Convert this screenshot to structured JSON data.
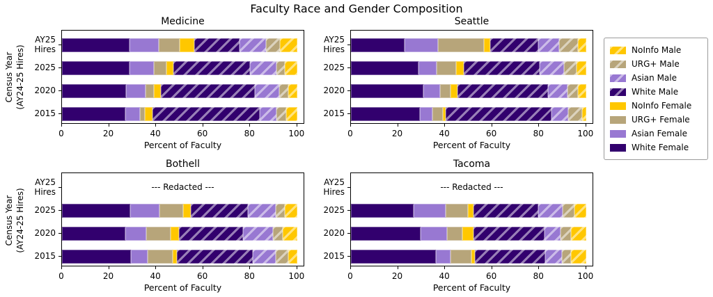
{
  "title": "Faculty Race and Gender Composition",
  "ylabel": "Census Year\n(AY24-25 Hires)",
  "redacted_label": "--- Redacted ---",
  "colors": {
    "white": "#32006E",
    "asian": "#9878D2",
    "urg_plus": "#B7A57A",
    "noinfo": "#FFC700"
  },
  "series_styles": {
    "White Female": {
      "color_key": "white",
      "hatched": false
    },
    "Asian Female": {
      "color_key": "asian",
      "hatched": false
    },
    "URG+ Female": {
      "color_key": "urg_plus",
      "hatched": false
    },
    "NoInfo Female": {
      "color_key": "noinfo",
      "hatched": false
    },
    "White Male": {
      "color_key": "white",
      "hatched": true
    },
    "Asian Male": {
      "color_key": "asian",
      "hatched": true
    },
    "URG+ Male": {
      "color_key": "urg_plus",
      "hatched": true
    },
    "NoInfo Male": {
      "color_key": "noinfo",
      "hatched": true
    }
  },
  "legend": {
    "items": [
      {
        "label": "NoInfo Male",
        "color_key": "noinfo",
        "hatched": true
      },
      {
        "label": "URG+ Male",
        "color_key": "urg_plus",
        "hatched": true
      },
      {
        "label": "Asian Male",
        "color_key": "asian",
        "hatched": true
      },
      {
        "label": "White Male",
        "color_key": "white",
        "hatched": true
      },
      {
        "label": "NoInfo Female",
        "color_key": "noinfo",
        "hatched": false
      },
      {
        "label": "URG+ Female",
        "color_key": "urg_plus",
        "hatched": false
      },
      {
        "label": "Asian Female",
        "color_key": "asian",
        "hatched": false
      },
      {
        "label": "White Female",
        "color_key": "white",
        "hatched": false
      }
    ]
  },
  "chart_data": [
    {
      "type": "bar",
      "orientation": "horizontal-stacked",
      "title": "Medicine",
      "xlabel": "Percent of Faculty",
      "categories": [
        "AY25\nHires",
        "2025",
        "2020",
        "2015"
      ],
      "xticks": [
        0,
        20,
        40,
        60,
        80,
        100
      ],
      "xlim": [
        0,
        103
      ],
      "series": [
        {
          "name": "White Female",
          "values": [
            28.7,
            28.7,
            27.2,
            27.0
          ]
        },
        {
          "name": "Asian Female",
          "values": [
            12.3,
            10.4,
            8.4,
            6.1
          ]
        },
        {
          "name": "URG+ Female",
          "values": [
            8.9,
            5.4,
            3.4,
            2.0
          ]
        },
        {
          "name": "NoInfo Female",
          "values": [
            6.4,
            2.9,
            3.0,
            3.5
          ]
        },
        {
          "name": "White Male",
          "values": [
            19.2,
            32.5,
            40.0,
            45.4
          ]
        },
        {
          "name": "Asian Male",
          "values": [
            11.3,
            11.4,
            10.3,
            7.3
          ]
        },
        {
          "name": "URG+ Male",
          "values": [
            5.9,
            3.3,
            3.9,
            4.0
          ]
        },
        {
          "name": "NoInfo Male",
          "values": [
            7.3,
            5.4,
            3.8,
            4.7
          ]
        }
      ]
    },
    {
      "type": "bar",
      "orientation": "horizontal-stacked",
      "title": "Seattle",
      "xlabel": "Percent of Faculty",
      "categories": [
        "AY25\nHires",
        "2025",
        "2020",
        "2015"
      ],
      "xticks": [
        0,
        20,
        40,
        60,
        80,
        100
      ],
      "xlim": [
        0,
        103
      ],
      "series": [
        {
          "name": "White Female",
          "values": [
            22.7,
            28.6,
            30.8,
            29.4
          ]
        },
        {
          "name": "Asian Female",
          "values": [
            14.3,
            7.7,
            7.0,
            5.1
          ]
        },
        {
          "name": "URG+ Female",
          "values": [
            19.6,
            8.5,
            4.6,
            4.5
          ]
        },
        {
          "name": "NoInfo Female",
          "values": [
            2.5,
            3.2,
            2.9,
            1.4
          ]
        },
        {
          "name": "White Male",
          "values": [
            20.6,
            32.2,
            38.6,
            44.8
          ]
        },
        {
          "name": "Asian Male",
          "values": [
            8.9,
            10.4,
            8.1,
            7.3
          ]
        },
        {
          "name": "URG+ Male",
          "values": [
            7.9,
            5.4,
            4.5,
            5.9
          ]
        },
        {
          "name": "NoInfo Male",
          "values": [
            3.5,
            4.0,
            3.5,
            1.6
          ]
        }
      ]
    },
    {
      "type": "bar",
      "orientation": "horizontal-stacked",
      "title": "Bothell",
      "xlabel": "Percent of Faculty",
      "categories": [
        "AY25\nHires",
        "2025",
        "2020",
        "2015"
      ],
      "xticks": [
        0,
        20,
        40,
        60,
        80,
        100
      ],
      "xlim": [
        0,
        103
      ],
      "redacted_categories": [
        "AY25\nHires"
      ],
      "series": [
        {
          "name": "White Female",
          "values": [
            null,
            28.9,
            26.9,
            29.4
          ]
        },
        {
          "name": "Asian Female",
          "values": [
            null,
            12.4,
            9.0,
            7.0
          ]
        },
        {
          "name": "URG+ Female",
          "values": [
            null,
            10.1,
            10.4,
            10.7
          ]
        },
        {
          "name": "NoInfo Female",
          "values": [
            null,
            3.4,
            3.3,
            1.8
          ]
        },
        {
          "name": "White Male",
          "values": [
            null,
            24.2,
            27.4,
            32.1
          ]
        },
        {
          "name": "Asian Male",
          "values": [
            null,
            11.8,
            12.8,
            9.8
          ]
        },
        {
          "name": "URG+ Male",
          "values": [
            null,
            3.8,
            4.0,
            5.5
          ]
        },
        {
          "name": "NoInfo Male",
          "values": [
            null,
            5.4,
            6.2,
            3.7
          ]
        }
      ]
    },
    {
      "type": "bar",
      "orientation": "horizontal-stacked",
      "title": "Tacoma",
      "xlabel": "Percent of Faculty",
      "categories": [
        "AY25\nHires",
        "2025",
        "2020",
        "2015"
      ],
      "xticks": [
        0,
        20,
        40,
        60,
        80,
        100
      ],
      "xlim": [
        0,
        103
      ],
      "redacted_categories": [
        "AY25\nHires"
      ],
      "series": [
        {
          "name": "White Female",
          "values": [
            null,
            26.6,
            29.6,
            36.0
          ]
        },
        {
          "name": "Asian Female",
          "values": [
            null,
            13.8,
            11.3,
            6.4
          ]
        },
        {
          "name": "URG+ Female",
          "values": [
            null,
            9.4,
            6.4,
            8.8
          ]
        },
        {
          "name": "NoInfo Female",
          "values": [
            null,
            2.4,
            4.9,
            1.5
          ]
        },
        {
          "name": "White Male",
          "values": [
            null,
            27.3,
            30.0,
            30.0
          ]
        },
        {
          "name": "Asian Male",
          "values": [
            null,
            10.6,
            6.9,
            6.9
          ]
        },
        {
          "name": "URG+ Male",
          "values": [
            null,
            4.9,
            4.6,
            4.1
          ]
        },
        {
          "name": "NoInfo Male",
          "values": [
            null,
            5.0,
            6.3,
            6.3
          ]
        }
      ]
    }
  ]
}
